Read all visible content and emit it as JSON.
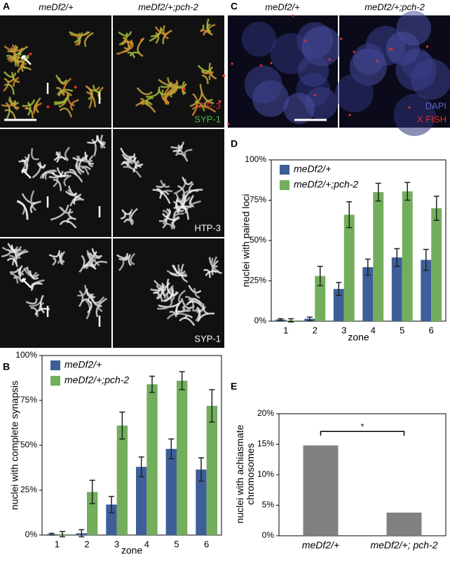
{
  "figure": {
    "panel_letters": [
      "A",
      "B",
      "C",
      "D",
      "E"
    ],
    "panel_a": {
      "column_labels": [
        "meDf2/+",
        "meDf2/+;pch-2"
      ],
      "channel_labels": [
        "HTP-3",
        "SYP-1",
        "HTP-3",
        "SYP-1"
      ]
    },
    "panel_c": {
      "column_labels": [
        "meDf2/+",
        "meDf2/+;pch-2"
      ],
      "channel_labels": [
        "DAPI",
        "X FISH"
      ]
    }
  },
  "chart_data": [
    {
      "type": "grouped-bar",
      "x_label": "zone",
      "y_label": "nuclei with complete synapsis",
      "categories": [
        "1",
        "2",
        "3",
        "4",
        "5",
        "6"
      ],
      "series": [
        {
          "name": "meDf2/+",
          "color": "#3d5e99",
          "values": [
            0.5,
            1,
            17,
            38,
            48,
            36.5
          ],
          "errors": [
            0.5,
            2,
            4.5,
            5.5,
            5.5,
            6.5
          ]
        },
        {
          "name": "meDf2/+;pch-2",
          "color": "#72ae5c",
          "values": [
            0.5,
            24,
            61,
            84,
            86,
            72
          ],
          "errors": [
            1.5,
            6.5,
            7.5,
            4.5,
            5,
            9
          ]
        }
      ],
      "ylim": [
        0,
        100
      ],
      "yticks": [
        {
          "value": 0,
          "label": "0%"
        },
        {
          "value": 25,
          "label": "25%"
        },
        {
          "value": 50,
          "label": "50%"
        },
        {
          "value": 75,
          "label": "75%"
        },
        {
          "value": 100,
          "label": "100%"
        }
      ],
      "legend": "upper left"
    },
    {
      "type": "grouped-bar",
      "x_label": "zone",
      "y_label": "nuclei with paired loci",
      "categories": [
        "1",
        "2",
        "3",
        "4",
        "5",
        "6"
      ],
      "series": [
        {
          "name": "meDf2/+",
          "color": "#3d5e99",
          "values": [
            1,
            1.5,
            20,
            33.5,
            39.5,
            38
          ],
          "errors": [
            0.5,
            1,
            4,
            5,
            5.5,
            6.5
          ]
        },
        {
          "name": "meDf2/+;pch-2",
          "color": "#72ae5c",
          "values": [
            0.5,
            28,
            66,
            80,
            80.5,
            70
          ],
          "errors": [
            1,
            6,
            8,
            5.5,
            5.5,
            7.5
          ]
        }
      ],
      "ylim": [
        0,
        100
      ],
      "yticks": [
        {
          "value": 0,
          "label": "0%"
        },
        {
          "value": 25,
          "label": "25%"
        },
        {
          "value": 50,
          "label": "50%"
        },
        {
          "value": 75,
          "label": "75%"
        },
        {
          "value": 100,
          "label": "100%"
        }
      ],
      "legend": "upper left"
    },
    {
      "type": "bar",
      "y_label": "nuclei with achiasmate chromosomes",
      "categories": [
        "meDf2/+",
        "meDf2/+; pch-2"
      ],
      "values": [
        14.8,
        3.8
      ],
      "color": "#808080",
      "ylim": [
        0,
        20
      ],
      "yticks": [
        {
          "value": 0,
          "label": "0%"
        },
        {
          "value": 5,
          "label": "5%"
        },
        {
          "value": 10,
          "label": "10%"
        },
        {
          "value": 15,
          "label": "15%"
        },
        {
          "value": 20,
          "label": "20%"
        }
      ],
      "significance": "*"
    }
  ]
}
